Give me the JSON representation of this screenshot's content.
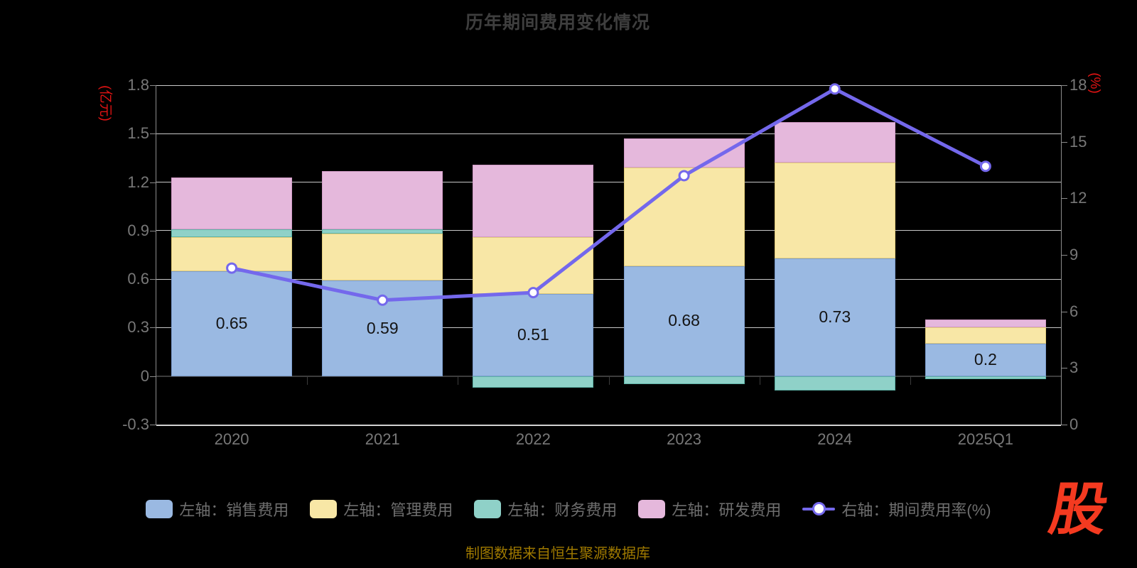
{
  "title": "历年期间费用变化情况",
  "source_note": "制图数据来自恒生聚源数据库",
  "logo_text": "股",
  "left_axis": {
    "unit": "(亿元)",
    "ticks": [
      1.8,
      1.5,
      1.2,
      0.9,
      0.6,
      0.3,
      0,
      -0.3
    ],
    "min": -0.3,
    "max": 1.8
  },
  "right_axis": {
    "unit": "(%)",
    "ticks": [
      18,
      15,
      12,
      9,
      6,
      3,
      0
    ],
    "min": 0,
    "max": 18
  },
  "chart_data": {
    "type": "bar",
    "subtype": "stacked-bar-with-line",
    "categories": [
      "2020",
      "2021",
      "2022",
      "2023",
      "2024",
      "2025Q1"
    ],
    "series": [
      {
        "name": "左轴：销售费用",
        "type": "bar",
        "axis": "left",
        "color": "#9ab9e2",
        "border": "#7d9ecf",
        "values": [
          0.65,
          0.59,
          0.51,
          0.68,
          0.73,
          0.2
        ],
        "labels": [
          "0.65",
          "0.59",
          "0.51",
          "0.68",
          "0.73",
          "0.2"
        ]
      },
      {
        "name": "左轴：管理费用",
        "type": "bar",
        "axis": "left",
        "color": "#f8e7a6",
        "border": "#e3cd7c",
        "values": [
          0.21,
          0.29,
          0.35,
          0.61,
          0.59,
          0.1
        ]
      },
      {
        "name": "左轴：财务费用",
        "type": "bar",
        "axis": "left",
        "color": "#8fd1c8",
        "border": "#5eb3a7",
        "values": [
          0.05,
          0.03,
          -0.07,
          -0.05,
          -0.09,
          -0.02
        ]
      },
      {
        "name": "左轴：研发费用",
        "type": "bar",
        "axis": "left",
        "color": "#e5b8dc",
        "border": "#d39cc8",
        "values": [
          0.32,
          0.36,
          0.45,
          0.18,
          0.25,
          0.05
        ]
      },
      {
        "name": "右轴：期间费用率(%)",
        "type": "line",
        "axis": "right",
        "color": "#7468ec",
        "values": [
          8.3,
          6.6,
          7.0,
          13.2,
          17.8,
          13.7
        ]
      }
    ],
    "ylabel_left": "(亿元)",
    "ylabel_right": "(%)",
    "ylim_left": [
      -0.3,
      1.8
    ],
    "ylim_right": [
      0,
      18
    ],
    "grid": true,
    "legend_position": "bottom"
  },
  "legend": {
    "items": [
      {
        "label": "左轴：销售费用",
        "symbol": "bar",
        "color": "#9ab9e2"
      },
      {
        "label": "左轴：管理费用",
        "symbol": "bar",
        "color": "#f8e7a6"
      },
      {
        "label": "左轴：财务费用",
        "symbol": "bar",
        "color": "#8fd1c8"
      },
      {
        "label": "左轴：研发费用",
        "symbol": "bar",
        "color": "#e5b8dc"
      },
      {
        "label": "右轴：期间费用率(%)",
        "symbol": "line",
        "color": "#7468ec"
      }
    ]
  },
  "style": {
    "grid_color": "#c8c8c8",
    "zero_line_color": "#3c3c3c",
    "axis_color": "#8c8c8c",
    "tick_text_color": "#787878",
    "title_color": "#3e3e3e",
    "unit_color": "#e11313",
    "line_color": "#7468ec",
    "footer_color": "#a07a00",
    "logo_color": "#f43a20"
  }
}
